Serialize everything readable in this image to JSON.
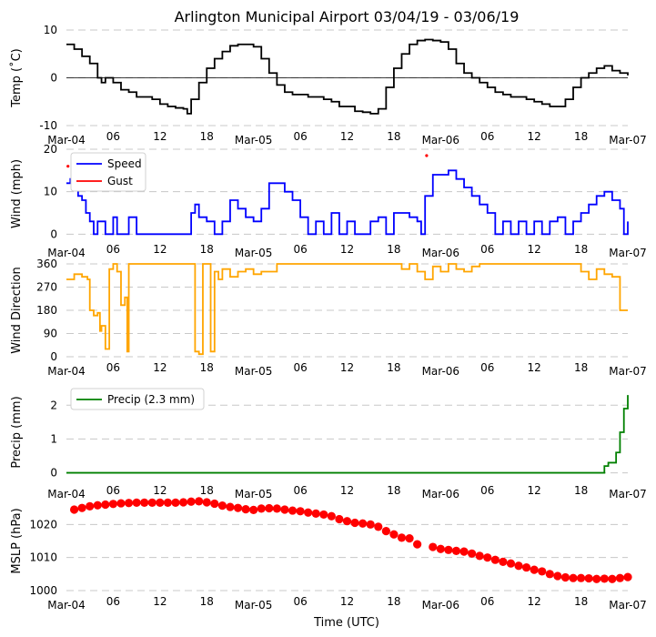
{
  "chart_data": {
    "title": "Arlington Municipal Airport 03/04/19 - 03/06/19",
    "xlabel": "Time (UTC)",
    "x_hours": [
      0,
      72
    ],
    "x_tick_hours": [
      0,
      6,
      12,
      18,
      24,
      30,
      36,
      42,
      48,
      54,
      60,
      66,
      72
    ],
    "x_tick_labels": [
      "Mar-04",
      "06",
      "12",
      "18",
      "Mar-05",
      "06",
      "12",
      "18",
      "Mar-06",
      "06",
      "12",
      "18",
      "Mar-07"
    ],
    "panels": [
      {
        "id": "temp",
        "type": "line",
        "ylabel": "Temp ($^\\circ$C)",
        "ylabel_display": "Temp (˚C)",
        "ylim": [
          -10,
          10
        ],
        "yticks": [
          -10,
          0,
          10
        ],
        "zero_line": true,
        "series": [
          {
            "name": "Temp",
            "color": "#000000",
            "x": [
              0,
              1,
              2,
              3,
              3.5,
              4,
              4.5,
              5,
              6,
              7,
              8,
              9,
              10,
              11,
              12,
              13,
              14,
              15,
              15.5,
              16,
              17,
              18,
              19,
              20,
              21,
              22,
              23,
              24,
              25,
              26,
              27,
              28,
              29,
              30,
              31,
              32,
              33,
              34,
              35,
              36,
              37,
              38,
              39,
              40,
              41,
              42,
              43,
              44,
              45,
              46,
              47,
              48,
              49,
              50,
              51,
              52,
              53,
              54,
              55,
              56,
              57,
              58,
              59,
              60,
              61,
              62,
              63,
              64,
              65,
              66,
              67,
              68,
              69,
              70,
              71,
              72
            ],
            "y": [
              7,
              6,
              4.5,
              3,
              3,
              0,
              -1,
              0,
              -1,
              -2.5,
              -3,
              -4,
              -4,
              -4.5,
              -5.5,
              -6,
              -6.3,
              -6.5,
              -7.5,
              -4.5,
              -1,
              2,
              4,
              5.5,
              6.7,
              7,
              7,
              6.5,
              4,
              1,
              -1.5,
              -3,
              -3.5,
              -3.5,
              -4,
              -4,
              -4.5,
              -5,
              -6,
              -6,
              -7,
              -7.2,
              -7.5,
              -6.5,
              -2,
              2,
              5,
              7,
              7.8,
              8,
              7.8,
              7.5,
              6,
              3,
              1,
              0,
              -1,
              -2,
              -3,
              -3.5,
              -4,
              -4,
              -4.5,
              -5,
              -5.5,
              -6,
              -6,
              -4.5,
              -2,
              0,
              1,
              2,
              2.5,
              1.5,
              1,
              0.5
            ]
          }
        ]
      },
      {
        "id": "wind",
        "type": "line",
        "ylabel": "Wind (mph)",
        "ylim": [
          -1,
          20
        ],
        "yticks": [
          0,
          10,
          20
        ],
        "legend": "upper-left",
        "series": [
          {
            "name": "Speed",
            "color": "#0000ff",
            "x": [
              0,
              0.5,
              1,
              1.5,
              2,
              2.5,
              3,
              3.5,
              4,
              5,
              6,
              6.5,
              7,
              8,
              9,
              10,
              11,
              12,
              13,
              14,
              15,
              16,
              16.5,
              17,
              18,
              19,
              20,
              21,
              22,
              23,
              24,
              25,
              26,
              27,
              28,
              29,
              30,
              31,
              32,
              33,
              34,
              35,
              36,
              37,
              38,
              39,
              40,
              41,
              42,
              43,
              44,
              45,
              45.5,
              46,
              47,
              48,
              49,
              50,
              51,
              52,
              53,
              54,
              55,
              56,
              57,
              58,
              59,
              60,
              61,
              62,
              63,
              64,
              65,
              66,
              67,
              68,
              69,
              70,
              71,
              71.5,
              72
            ],
            "y": [
              12,
              13,
              11,
              9,
              8,
              5,
              3,
              0,
              3,
              0,
              4,
              0,
              0,
              4,
              0,
              0,
              0,
              0,
              0,
              0,
              0,
              5,
              7,
              4,
              3,
              0,
              3,
              8,
              6,
              4,
              3,
              6,
              12,
              12,
              10,
              8,
              4,
              0,
              3,
              0,
              5,
              0,
              3,
              0,
              0,
              3,
              4,
              0,
              5,
              5,
              4,
              3,
              0,
              9,
              14,
              14,
              15,
              13,
              11,
              9,
              7,
              5,
              0,
              3,
              0,
              3,
              0,
              3,
              0,
              3,
              4,
              0,
              3,
              5,
              7,
              9,
              10,
              8,
              6,
              0,
              3
            ]
          },
          {
            "name": "Gust",
            "color": "#ff0000",
            "points": [
              [
                0.2,
                16
              ],
              [
                46.2,
                18.5
              ]
            ]
          }
        ]
      },
      {
        "id": "dir",
        "type": "line",
        "ylabel": "Wind Direction",
        "ylim": [
          0,
          360
        ],
        "yticks": [
          0,
          90,
          180,
          270,
          360
        ],
        "series": [
          {
            "name": "Direction",
            "color": "#ffa500",
            "x": [
              0,
              1,
              2,
              2.7,
              3,
              3.5,
              4,
              4.3,
              4.5,
              5,
              5.5,
              6,
              6.5,
              7,
              7.5,
              7.8,
              8,
              9,
              10,
              11,
              12,
              13,
              14,
              15,
              16,
              16.5,
              17,
              17.5,
              18,
              18.5,
              19,
              19.5,
              20,
              21,
              22,
              23,
              24,
              25,
              26,
              27,
              28,
              29,
              30,
              31,
              32,
              33,
              34,
              35,
              36,
              37,
              38,
              39,
              40,
              41,
              42,
              43,
              44,
              45,
              46,
              47,
              48,
              49,
              50,
              51,
              52,
              53,
              54,
              55,
              56,
              57,
              58,
              59,
              60,
              61,
              62,
              63,
              64,
              65,
              66,
              67,
              68,
              69,
              70,
              71,
              72
            ],
            "y": [
              300,
              320,
              310,
              300,
              180,
              160,
              170,
              100,
              120,
              30,
              340,
              360,
              330,
              200,
              230,
              20,
              360,
              360,
              360,
              360,
              360,
              360,
              360,
              360,
              360,
              20,
              10,
              360,
              360,
              20,
              330,
              300,
              340,
              310,
              330,
              340,
              320,
              330,
              330,
              360,
              360,
              360,
              360,
              360,
              360,
              360,
              360,
              360,
              360,
              360,
              360,
              360,
              360,
              360,
              360,
              340,
              360,
              330,
              300,
              350,
              330,
              360,
              340,
              330,
              350,
              360,
              360,
              360,
              360,
              360,
              360,
              360,
              360,
              360,
              360,
              360,
              360,
              360,
              330,
              300,
              340,
              320,
              310,
              180,
              180
            ]
          }
        ]
      },
      {
        "id": "precip",
        "type": "line",
        "ylabel": "Precip (mm)",
        "ylim": [
          -0.2,
          2.6
        ],
        "yticks": [
          0,
          1,
          2
        ],
        "legend": "upper-left",
        "series": [
          {
            "name": "Precip (2.3 mm)",
            "color": "#008000",
            "x": [
              0,
              10,
              20,
              30,
              40,
              50,
              60,
              68.5,
              69,
              69.5,
              70,
              70.5,
              71,
              71.5,
              72
            ],
            "y": [
              0,
              0,
              0,
              0,
              0,
              0,
              0,
              0,
              0.2,
              0.3,
              0.3,
              0.6,
              1.2,
              1.9,
              2.3
            ]
          }
        ]
      },
      {
        "id": "mslp",
        "type": "scatter",
        "ylabel": "MSLP (hPa)",
        "ylim": [
          1000,
          1030
        ],
        "yticks": [
          1000,
          1010,
          1020
        ],
        "series": [
          {
            "name": "MSLP",
            "color": "#ff0000",
            "x": [
              1,
              2,
              3,
              4,
              5,
              6,
              7,
              8,
              9,
              10,
              11,
              12,
              13,
              14,
              15,
              16,
              17,
              18,
              19,
              20,
              21,
              22,
              23,
              24,
              25,
              26,
              27,
              28,
              29,
              30,
              31,
              32,
              33,
              34,
              35,
              36,
              37,
              38,
              39,
              40,
              41,
              42,
              43,
              44,
              45,
              47,
              48,
              49,
              50,
              51,
              52,
              53,
              54,
              55,
              56,
              57,
              58,
              59,
              60,
              61,
              62,
              63,
              64,
              65,
              66,
              67,
              68,
              69,
              70,
              71,
              72
            ],
            "y": [
              1024.5,
              1025,
              1025.5,
              1025.8,
              1026,
              1026.2,
              1026.4,
              1026.5,
              1026.6,
              1026.6,
              1026.6,
              1026.6,
              1026.6,
              1026.6,
              1026.7,
              1026.9,
              1027,
              1026.7,
              1026.3,
              1025.7,
              1025.3,
              1025,
              1024.6,
              1024.4,
              1024.8,
              1024.9,
              1024.8,
              1024.5,
              1024.2,
              1024,
              1023.6,
              1023.3,
              1023,
              1022.5,
              1021.6,
              1021,
              1020.5,
              1020.3,
              1020,
              1019.3,
              1018,
              1017,
              1016,
              1015.8,
              1014,
              1013.2,
              1012.6,
              1012.3,
              1012,
              1011.8,
              1011.2,
              1010.5,
              1010,
              1009.3,
              1008.7,
              1008.2,
              1007.5,
              1007,
              1006.3,
              1005.8,
              1005,
              1004.4,
              1004,
              1003.8,
              1003.8,
              1003.7,
              1003.5,
              1003.6,
              1003.5,
              1003.8,
              1004.1
            ]
          }
        ]
      }
    ]
  }
}
